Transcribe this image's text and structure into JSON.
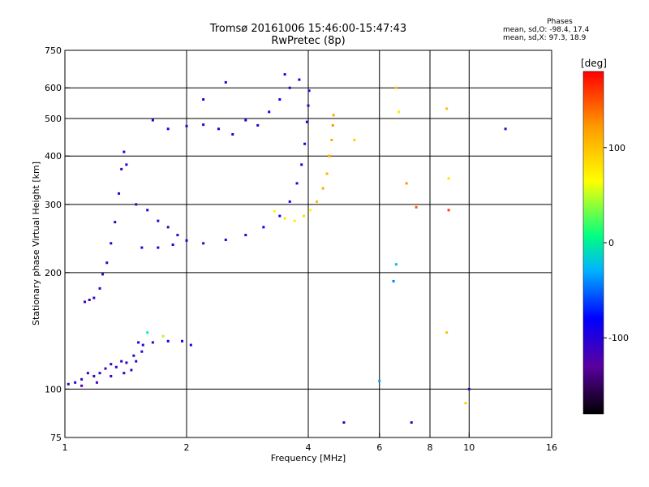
{
  "header": {
    "title_line1": "Tromsø 20161006 15:46:00-15:47:43",
    "title_line2": "RwPretec (8p)"
  },
  "phase_info": {
    "title": "Phases",
    "line1": "mean, sd,O: -98.4, 17.4",
    "line2": "mean, sd,X:  97.3, 18.9"
  },
  "colorbar": {
    "unit": "[deg]",
    "ticks": [
      {
        "value": 100,
        "label": "100"
      },
      {
        "value": 0,
        "label": "0"
      },
      {
        "value": -100,
        "label": "-100"
      }
    ],
    "range": [
      -180,
      180
    ],
    "colors": [
      "#000000",
      "#5a00a0",
      "#0000ff",
      "#00b4ff",
      "#00ff80",
      "#ffff00",
      "#ff9900",
      "#ff0000"
    ]
  },
  "chart_data": {
    "type": "scatter",
    "title": "Tromsø 20161006 15:46:00-15:47:43",
    "subtitle": "RwPretec (8p)",
    "xlabel": "Frequency [MHz]",
    "ylabel": "Stationary phase Virtual Height [km]",
    "xscale": "log",
    "yscale": "log",
    "xlim": [
      1,
      16
    ],
    "ylim": [
      75,
      750
    ],
    "x_ticks": [
      1,
      2,
      4,
      6,
      8,
      10,
      16
    ],
    "y_ticks": [
      75,
      100,
      200,
      300,
      400,
      500,
      600,
      750
    ],
    "x_grid": [
      2,
      4,
      6,
      8,
      10
    ],
    "y_grid": [
      100,
      200,
      300,
      400,
      500,
      600
    ],
    "grid": true,
    "color_by": "phase (deg)",
    "series": [
      {
        "points": [
          [
            1.02,
            103,
            -110
          ],
          [
            1.06,
            104,
            -100
          ],
          [
            1.1,
            106,
            -115
          ],
          [
            1.14,
            110,
            -105
          ],
          [
            1.18,
            108,
            -110
          ],
          [
            1.22,
            110,
            -100
          ],
          [
            1.26,
            113,
            -115
          ],
          [
            1.3,
            116,
            -105
          ],
          [
            1.34,
            114,
            -110
          ],
          [
            1.38,
            118,
            -100
          ],
          [
            1.42,
            117,
            -112
          ],
          [
            1.46,
            112,
            -105
          ],
          [
            1.5,
            118,
            -100
          ],
          [
            1.55,
            125,
            -110
          ],
          [
            1.1,
            102,
            -120
          ],
          [
            1.2,
            104,
            -115
          ],
          [
            1.3,
            108,
            -110
          ],
          [
            1.4,
            110,
            -105
          ],
          [
            1.48,
            122,
            -110
          ],
          [
            1.52,
            132,
            -100
          ],
          [
            1.56,
            130,
            -95
          ]
        ]
      },
      {
        "points": [
          [
            1.12,
            168,
            -110
          ],
          [
            1.15,
            170,
            -105
          ],
          [
            1.18,
            172,
            -110
          ],
          [
            1.22,
            182,
            -100
          ],
          [
            1.24,
            198,
            -110
          ],
          [
            1.27,
            212,
            -105
          ],
          [
            1.3,
            238,
            -100
          ],
          [
            1.33,
            270,
            -110
          ],
          [
            1.36,
            320,
            -105
          ],
          [
            1.38,
            370,
            -110
          ],
          [
            1.4,
            410,
            -100
          ],
          [
            1.42,
            380,
            -105
          ]
        ]
      },
      {
        "points": [
          [
            1.5,
            300,
            -105
          ],
          [
            1.6,
            290,
            -100
          ],
          [
            1.7,
            272,
            -105
          ],
          [
            1.8,
            262,
            -110
          ],
          [
            1.9,
            250,
            -105
          ],
          [
            2.0,
            242,
            -100
          ],
          [
            2.2,
            238,
            -105
          ],
          [
            2.5,
            243,
            -95
          ],
          [
            2.8,
            250,
            -100
          ],
          [
            3.1,
            262,
            -95
          ],
          [
            3.4,
            280,
            -90
          ],
          [
            3.6,
            305,
            -95
          ],
          [
            3.75,
            340,
            -100
          ],
          [
            3.85,
            380,
            -95
          ],
          [
            3.92,
            430,
            -90
          ],
          [
            3.97,
            490,
            -95
          ],
          [
            4.0,
            540,
            -100
          ],
          [
            4.02,
            590,
            -95
          ],
          [
            1.55,
            232,
            -100
          ],
          [
            1.7,
            232,
            -95
          ],
          [
            1.85,
            236,
            -100
          ]
        ]
      },
      {
        "points": [
          [
            3.3,
            288,
            80
          ],
          [
            3.5,
            276,
            90
          ],
          [
            3.7,
            272,
            85
          ],
          [
            3.9,
            280,
            95
          ],
          [
            4.05,
            290,
            80
          ],
          [
            4.2,
            305,
            110
          ],
          [
            4.35,
            330,
            120
          ],
          [
            4.45,
            360,
            115
          ],
          [
            4.52,
            400,
            125
          ],
          [
            4.57,
            440,
            120
          ],
          [
            4.6,
            480,
            130
          ],
          [
            4.62,
            510,
            120
          ]
        ]
      },
      {
        "points": [
          [
            1.65,
            495,
            -100
          ],
          [
            1.8,
            470,
            -95
          ],
          [
            2.0,
            478,
            -100
          ],
          [
            2.2,
            482,
            -90
          ],
          [
            2.4,
            470,
            -95
          ],
          [
            2.6,
            455,
            -100
          ],
          [
            2.8,
            495,
            -95
          ],
          [
            3.0,
            480,
            -100
          ],
          [
            3.2,
            520,
            -90
          ],
          [
            3.4,
            560,
            -95
          ],
          [
            3.6,
            600,
            -100
          ],
          [
            3.8,
            630,
            -95
          ],
          [
            3.5,
            650,
            -90
          ],
          [
            2.5,
            620,
            -100
          ],
          [
            2.2,
            560,
            -95
          ]
        ]
      },
      {
        "points": [
          [
            1.65,
            132,
            -110
          ],
          [
            1.8,
            133,
            -100
          ],
          [
            1.95,
            133,
            -95
          ],
          [
            2.05,
            130,
            -90
          ],
          [
            1.6,
            140,
            20
          ],
          [
            1.75,
            137,
            60
          ]
        ]
      },
      {
        "points": [
          [
            4.9,
            82,
            -110
          ],
          [
            6.0,
            105,
            -30
          ],
          [
            6.5,
            190,
            -40
          ],
          [
            6.6,
            210,
            -20
          ],
          [
            6.6,
            600,
            110
          ],
          [
            6.7,
            520,
            90
          ],
          [
            7.0,
            340,
            130
          ],
          [
            7.2,
            82,
            -110
          ],
          [
            7.4,
            295,
            150
          ],
          [
            8.8,
            530,
            110
          ],
          [
            8.9,
            290,
            160
          ],
          [
            8.9,
            350,
            90
          ],
          [
            8.8,
            140,
            110
          ],
          [
            10.0,
            100,
            -110
          ],
          [
            12.3,
            470,
            -110
          ],
          [
            9.8,
            92,
            100
          ],
          [
            4.5,
            400,
            120
          ],
          [
            5.2,
            440,
            100
          ]
        ]
      }
    ]
  }
}
